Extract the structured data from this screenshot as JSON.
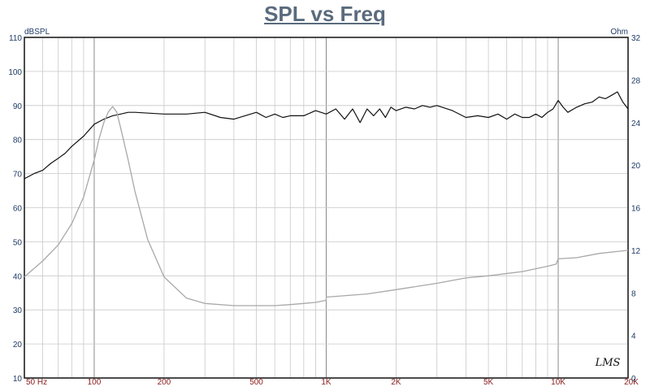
{
  "chart_data": {
    "type": "line",
    "title": "SPL vs Freq",
    "ylabel": "dBSPL",
    "y2label": "Ohm",
    "x_scale": "log",
    "xlim": [
      50,
      20000
    ],
    "ylim": [
      10,
      110
    ],
    "y2lim": [
      0,
      32
    ],
    "grid": true,
    "x_ticks": [
      {
        "value": 50,
        "label": "50  Hz"
      },
      {
        "value": 100,
        "label": "100"
      },
      {
        "value": 200,
        "label": "200"
      },
      {
        "value": 500,
        "label": "500"
      },
      {
        "value": 1000,
        "label": "1K"
      },
      {
        "value": 2000,
        "label": "2K"
      },
      {
        "value": 5000,
        "label": "5K"
      },
      {
        "value": 10000,
        "label": "10K"
      },
      {
        "value": 20000,
        "label": "20K"
      }
    ],
    "y_ticks": [
      10,
      20,
      30,
      40,
      50,
      60,
      70,
      80,
      90,
      100,
      110
    ],
    "y2_ticks": [
      0,
      4,
      8,
      12,
      16,
      20,
      24,
      28,
      32
    ],
    "series": [
      {
        "axis": "left",
        "color": "#111111",
        "x": [
          50,
          55,
          60,
          65,
          70,
          75,
          80,
          90,
          100,
          110,
          120,
          130,
          140,
          150,
          200,
          250,
          300,
          350,
          400,
          500,
          550,
          600,
          650,
          700,
          800,
          900,
          1000,
          1100,
          1200,
          1300,
          1400,
          1500,
          1600,
          1700,
          1800,
          1900,
          2000,
          2200,
          2400,
          2600,
          2800,
          3000,
          3500,
          4000,
          4500,
          5000,
          5500,
          6000,
          6500,
          7000,
          7500,
          8000,
          8500,
          9000,
          9500,
          10000,
          10500,
          11000,
          12000,
          13000,
          14000,
          15000,
          16000,
          17000,
          18000,
          19000,
          20000
        ],
        "values": [
          68.5,
          70,
          71,
          73,
          74.5,
          76,
          78,
          81,
          84.5,
          86,
          87,
          87.5,
          88,
          88,
          87.5,
          87.5,
          88,
          86.5,
          86,
          88,
          86.5,
          87.5,
          86.5,
          87,
          87,
          88.5,
          87.5,
          89,
          86,
          89,
          85,
          89,
          87,
          89,
          86.5,
          89.5,
          88.5,
          89.5,
          89,
          90,
          89.5,
          90,
          88.5,
          86.5,
          87,
          86.5,
          87.5,
          86,
          87.5,
          86.5,
          86.5,
          87.5,
          86.5,
          88,
          89,
          91.5,
          89.5,
          88,
          89.5,
          90.5,
          91,
          92.5,
          92,
          93,
          94,
          91,
          89
        ]
      },
      {
        "axis": "right",
        "color": "#a8a8a8",
        "x": [
          50,
          60,
          70,
          80,
          90,
          100,
          105,
          110,
          115,
          120,
          125,
          130,
          140,
          150,
          170,
          200,
          250,
          300,
          400,
          500,
          600,
          700,
          800,
          900,
          999,
          1000,
          1500,
          2000,
          3000,
          4000,
          5000,
          7000,
          9000,
          9800,
          10000,
          12000,
          15000,
          20000
        ],
        "values": [
          9.5,
          11,
          12.5,
          14.5,
          17,
          20.5,
          22.5,
          24,
          25,
          25.5,
          25,
          23.5,
          20.5,
          17.5,
          13,
          9.5,
          7.5,
          7,
          6.8,
          6.8,
          6.8,
          6.9,
          7,
          7.1,
          7.3,
          7.6,
          7.9,
          8.3,
          8.9,
          9.4,
          9.6,
          10,
          10.5,
          10.7,
          11.2,
          11.3,
          11.7,
          12
        ]
      }
    ],
    "annotation": "LMS"
  }
}
